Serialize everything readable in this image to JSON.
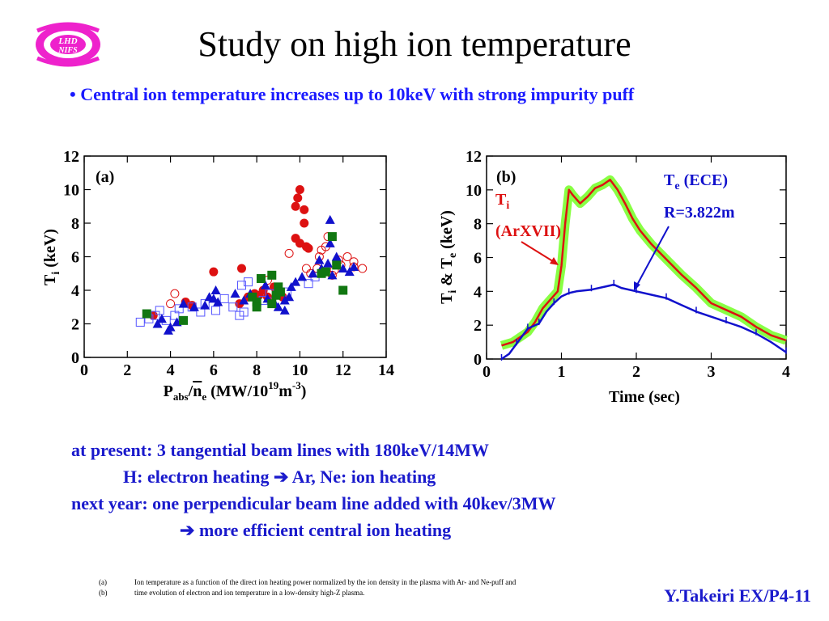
{
  "header": {
    "logo_text_top": "LHD",
    "logo_text_bottom": "NIFS",
    "title": "Study on high ion temperature",
    "bullet": "•",
    "subtitle": "Central ion temperature increases up to 10keV with strong impurity puff"
  },
  "notes": {
    "line1": "at present: 3 tangential beam lines with 180keV/14MW",
    "line2_a": "H: electron heating ",
    "line2_b": " Ar, Ne: ion heating",
    "line3": "next year: one perpendicular beam line added with 40kev/3MW",
    "line4": " more efficient central ion heating"
  },
  "footnotes": [
    {
      "key": "(a)",
      "text": "Ion temperature as a function of the direct ion heating power normalized by the ion density in the plasma with Ar- and Ne-puff and"
    },
    {
      "key": "(b)",
      "text": "time evolution of electron and ion temperature in a low-density high-Z plasma."
    }
  ],
  "author": "Y.Takeiri EX/P4-11",
  "colors": {
    "title": "#000000",
    "accent_blue": "#1a1acc",
    "red": "#dd1111",
    "blue": "#1111cc",
    "green": "#117711",
    "lime": "#88ff44",
    "logo": "#ee22cc"
  },
  "chart_data": [
    {
      "type": "scatter",
      "label": "(a)",
      "ylabel_main": "T",
      "ylabel_sub": "i",
      "ylabel_rest": " (keV)",
      "xlabel_parts": {
        "p": "P",
        "abs": "abs",
        "slash": "/",
        "n": "n",
        "e": "e",
        "mid": " (MW/10",
        "exp": "19",
        "m": "m",
        "exp2": "-3",
        "close": ")"
      },
      "xlim": [
        0,
        14
      ],
      "ylim": [
        0,
        12
      ],
      "xticks": [
        "0",
        "2",
        "4",
        "6",
        "8",
        "10",
        "12",
        "14"
      ],
      "yticks": [
        "0",
        "2",
        "4",
        "6",
        "8",
        "10",
        "12"
      ],
      "grid": false,
      "series": [
        {
          "marker": "filled-circle",
          "color": "#dd1111",
          "points": [
            [
              3.2,
              2.5
            ],
            [
              4.7,
              3.3
            ],
            [
              5,
              3.1
            ],
            [
              6,
              5.1
            ],
            [
              7.2,
              3.2
            ],
            [
              7.3,
              5.3
            ],
            [
              7.6,
              3.6
            ],
            [
              7.9,
              3.8
            ],
            [
              8.1,
              3.7
            ],
            [
              8.3,
              4.0
            ],
            [
              8.5,
              3.6
            ],
            [
              8.8,
              4.2
            ],
            [
              9,
              3.8
            ],
            [
              9.2,
              3.6
            ],
            [
              9.8,
              9.0
            ],
            [
              9.9,
              9.5
            ],
            [
              10.0,
              10.0
            ],
            [
              10.2,
              8.8
            ],
            [
              10.2,
              8.0
            ],
            [
              9.8,
              7.1
            ],
            [
              10,
              6.8
            ],
            [
              10.3,
              6.6
            ],
            [
              10.4,
              6.5
            ]
          ]
        },
        {
          "marker": "open-circle",
          "color": "#dd1111",
          "points": [
            [
              4,
              3.2
            ],
            [
              4.2,
              3.8
            ],
            [
              8.5,
              4.6
            ],
            [
              9.5,
              6.2
            ],
            [
              10.3,
              5.3
            ],
            [
              10.5,
              5.0
            ],
            [
              10.8,
              5.3
            ],
            [
              10.9,
              6.0
            ],
            [
              11,
              6.4
            ],
            [
              11.2,
              6.6
            ],
            [
              11.3,
              7.2
            ],
            [
              11.6,
              5.2
            ],
            [
              11.9,
              5.5
            ],
            [
              12.2,
              6.0
            ],
            [
              12.5,
              5.7
            ],
            [
              12.9,
              5.3
            ],
            [
              11.5,
              4.9
            ],
            [
              11.8,
              5.8
            ],
            [
              12.5,
              5.4
            ]
          ]
        },
        {
          "marker": "open-square",
          "color": "#5555ff",
          "points": [
            [
              2.6,
              2.1
            ],
            [
              3.0,
              2.3
            ],
            [
              3.3,
              2.5
            ],
            [
              3.5,
              2.8
            ],
            [
              3.8,
              2.2
            ],
            [
              4.2,
              2.5
            ],
            [
              4.4,
              2.9
            ],
            [
              5,
              3.0
            ],
            [
              5.4,
              2.7
            ],
            [
              5.6,
              3.2
            ],
            [
              6.1,
              2.8
            ],
            [
              6.5,
              3.5
            ],
            [
              6.9,
              3.0
            ],
            [
              7.2,
              2.5
            ],
            [
              7.4,
              2.7
            ],
            [
              7.3,
              4.3
            ],
            [
              7.6,
              4.5
            ],
            [
              8.3,
              3.4
            ],
            [
              8.6,
              3.8
            ],
            [
              9.4,
              3.9
            ],
            [
              10.4,
              4.4
            ],
            [
              10.7,
              4.8
            ]
          ]
        },
        {
          "marker": "filled-triangle",
          "color": "#1111cc",
          "points": [
            [
              3.4,
              2.0
            ],
            [
              3.6,
              2.3
            ],
            [
              3.9,
              1.6
            ],
            [
              4.0,
              1.8
            ],
            [
              4.3,
              2.1
            ],
            [
              4.6,
              3.2
            ],
            [
              5.1,
              3.0
            ],
            [
              5.6,
              3.1
            ],
            [
              5.8,
              3.6
            ],
            [
              6.0,
              3.5
            ],
            [
              6.1,
              4.0
            ],
            [
              6.2,
              3.3
            ],
            [
              7,
              3.8
            ],
            [
              7.4,
              3.4
            ],
            [
              7.7,
              3.8
            ],
            [
              8.4,
              4.3
            ],
            [
              8.5,
              3.5
            ],
            [
              8.8,
              3.3
            ],
            [
              9,
              3.0
            ],
            [
              9.3,
              2.8
            ],
            [
              9.5,
              3.6
            ],
            [
              9.6,
              4.2
            ],
            [
              9.8,
              4.5
            ],
            [
              10.1,
              4.8
            ],
            [
              10.6,
              5.0
            ],
            [
              11,
              5.3
            ],
            [
              11.3,
              5.6
            ],
            [
              11.5,
              4.9
            ],
            [
              11.7,
              6.0
            ],
            [
              12.0,
              5.3
            ],
            [
              12.3,
              5.1
            ],
            [
              12.5,
              5.4
            ],
            [
              11.4,
              8.2
            ],
            [
              11.4,
              6.8
            ],
            [
              10.9,
              5.8
            ],
            [
              9.3,
              3.4
            ]
          ]
        },
        {
          "marker": "filled-square",
          "color": "#117711",
          "points": [
            [
              2.9,
              2.6
            ],
            [
              4.6,
              2.2
            ],
            [
              7.8,
              3.6
            ],
            [
              8.0,
              3.3
            ],
            [
              8.2,
              4.7
            ],
            [
              8.7,
              4.9
            ],
            [
              8.9,
              3.7
            ],
            [
              9,
              4.2
            ],
            [
              9.1,
              3.9
            ],
            [
              8.7,
              3.2
            ],
            [
              11.0,
              5.0
            ],
            [
              11.2,
              5.1
            ],
            [
              11.5,
              7.2
            ],
            [
              11.7,
              5.5
            ],
            [
              12.0,
              4.0
            ],
            [
              8.0,
              3.0
            ]
          ]
        }
      ]
    },
    {
      "type": "line",
      "label": "(b)",
      "ylabel_t": "T",
      "ylabel_i": "i",
      "ylabel_amp": " & T",
      "ylabel_e": "e",
      "ylabel_unit": " (keV)",
      "xlabel": "Time (sec)",
      "xlim": [
        0,
        4
      ],
      "ylim": [
        0,
        12
      ],
      "xticks": [
        "0",
        "1",
        "2",
        "3",
        "4"
      ],
      "yticks": [
        "0",
        "2",
        "4",
        "6",
        "8",
        "10",
        "12"
      ],
      "grid": false,
      "annotation_ti_main": "T",
      "annotation_ti_sub": "i",
      "annotation_ti_extra": "(ArXVII)",
      "annotation_te_main": "T",
      "annotation_te_sub": "e",
      "annotation_te_extra": " (ECE)",
      "annotation_te_r": "R=3.822m",
      "series": [
        {
          "name": "Ti",
          "color": "#dd1111",
          "band_color": "#88ff44",
          "x": [
            0.2,
            0.35,
            0.45,
            0.55,
            0.65,
            0.75,
            0.85,
            0.95,
            1.0,
            1.05,
            1.1,
            1.15,
            1.25,
            1.35,
            1.45,
            1.55,
            1.65,
            1.75,
            1.85,
            1.95,
            2.05,
            2.2,
            2.4,
            2.6,
            2.8,
            3.0,
            3.2,
            3.4,
            3.6,
            3.8,
            4.0
          ],
          "y": [
            0.8,
            1.0,
            1.3,
            1.6,
            2.2,
            3.0,
            3.5,
            4.0,
            5.5,
            8.0,
            10.0,
            9.7,
            9.2,
            9.6,
            10.1,
            10.3,
            10.6,
            10.0,
            9.2,
            8.3,
            7.6,
            6.8,
            5.9,
            5.0,
            4.2,
            3.3,
            2.9,
            2.5,
            1.9,
            1.4,
            1.1
          ]
        },
        {
          "name": "Te",
          "color": "#1111cc",
          "x": [
            0.2,
            0.3,
            0.4,
            0.5,
            0.55,
            0.6,
            0.7,
            0.8,
            0.9,
            1.0,
            1.1,
            1.2,
            1.4,
            1.6,
            1.7,
            1.8,
            2.0,
            2.2,
            2.4,
            2.6,
            2.8,
            3.0,
            3.2,
            3.4,
            3.6,
            3.8,
            4.0
          ],
          "y": [
            0.0,
            0.3,
            0.9,
            1.5,
            1.8,
            1.9,
            2.1,
            2.8,
            3.3,
            3.7,
            3.9,
            4.0,
            4.1,
            4.3,
            4.4,
            4.2,
            4.0,
            3.8,
            3.6,
            3.2,
            2.8,
            2.5,
            2.2,
            1.9,
            1.5,
            1.0,
            0.4
          ]
        }
      ]
    }
  ]
}
